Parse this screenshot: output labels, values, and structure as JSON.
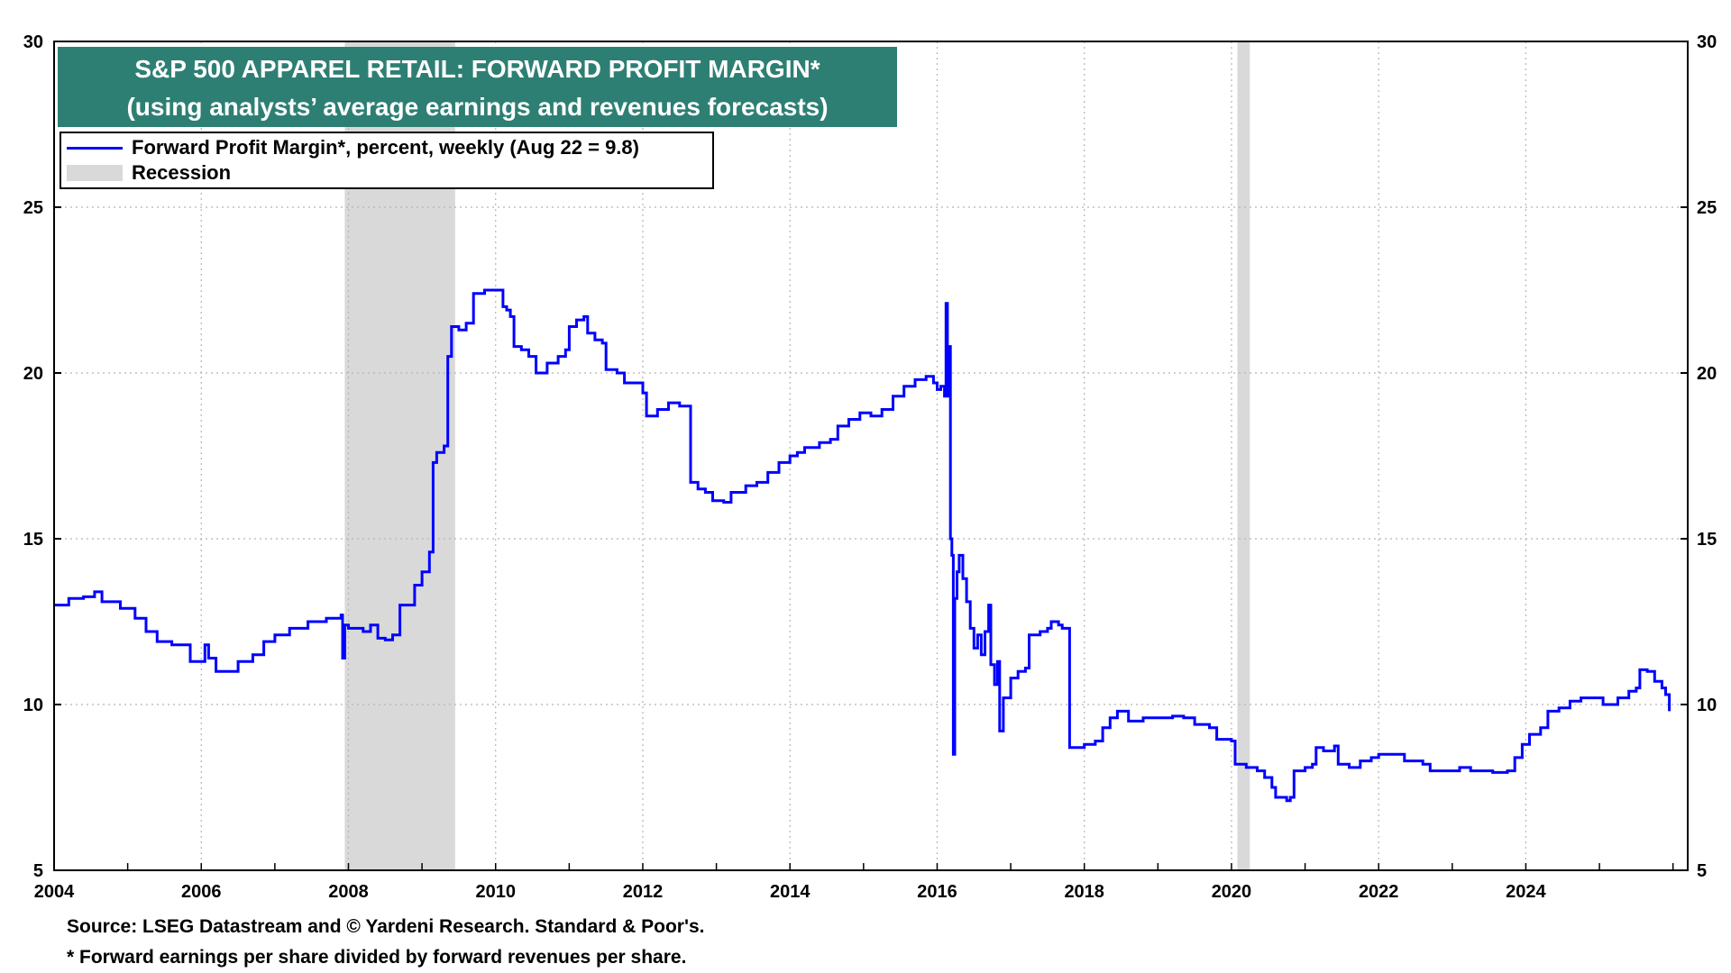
{
  "chart_data": {
    "type": "line",
    "title": "S&P 500 APPAREL RETAIL: FORWARD PROFIT MARGIN*",
    "subtitle": "(using analysts’ average earnings and revenues forecasts)",
    "xlim": [
      2004,
      2026.2
    ],
    "ylim": [
      5,
      30
    ],
    "x_ticks": [
      2004,
      2006,
      2008,
      2010,
      2012,
      2014,
      2016,
      2018,
      2020,
      2022,
      2024
    ],
    "y_ticks": [
      5,
      10,
      15,
      20,
      25,
      30
    ],
    "grid": true,
    "legend_position": "top-left",
    "colors": {
      "series": "#0000ff",
      "recession": "#d9d9d9",
      "title_bg": "#2e7f73"
    },
    "series": [
      {
        "name": "Forward Profit Margin*, percent, weekly (Aug 22 = 9.8)",
        "points": [
          [
            2004.0,
            13.0
          ],
          [
            2004.2,
            13.2
          ],
          [
            2004.4,
            13.25
          ],
          [
            2004.55,
            13.4
          ],
          [
            2004.65,
            13.1
          ],
          [
            2004.9,
            12.9
          ],
          [
            2005.1,
            12.6
          ],
          [
            2005.25,
            12.2
          ],
          [
            2005.4,
            11.9
          ],
          [
            2005.6,
            11.8
          ],
          [
            2005.75,
            11.8
          ],
          [
            2005.85,
            11.3
          ],
          [
            2006.05,
            11.8
          ],
          [
            2006.1,
            11.4
          ],
          [
            2006.2,
            11.0
          ],
          [
            2006.35,
            11.0
          ],
          [
            2006.5,
            11.3
          ],
          [
            2006.7,
            11.5
          ],
          [
            2006.85,
            11.9
          ],
          [
            2007.0,
            12.1
          ],
          [
            2007.2,
            12.3
          ],
          [
            2007.45,
            12.5
          ],
          [
            2007.7,
            12.6
          ],
          [
            2007.9,
            12.7
          ],
          [
            2007.92,
            11.4
          ],
          [
            2007.95,
            12.4
          ],
          [
            2008.0,
            12.3
          ],
          [
            2008.2,
            12.2
          ],
          [
            2008.3,
            12.4
          ],
          [
            2008.4,
            12.0
          ],
          [
            2008.5,
            11.95
          ],
          [
            2008.6,
            12.1
          ],
          [
            2008.7,
            13.0
          ],
          [
            2008.9,
            13.6
          ],
          [
            2009.0,
            14.0
          ],
          [
            2009.1,
            14.6
          ],
          [
            2009.15,
            17.3
          ],
          [
            2009.2,
            17.6
          ],
          [
            2009.3,
            17.8
          ],
          [
            2009.35,
            20.5
          ],
          [
            2009.4,
            21.4
          ],
          [
            2009.5,
            21.3
          ],
          [
            2009.6,
            21.5
          ],
          [
            2009.7,
            22.4
          ],
          [
            2009.85,
            22.5
          ],
          [
            2010.0,
            22.5
          ],
          [
            2010.1,
            22.0
          ],
          [
            2010.15,
            21.9
          ],
          [
            2010.2,
            21.7
          ],
          [
            2010.25,
            20.8
          ],
          [
            2010.35,
            20.7
          ],
          [
            2010.45,
            20.5
          ],
          [
            2010.55,
            20.0
          ],
          [
            2010.7,
            20.3
          ],
          [
            2010.85,
            20.5
          ],
          [
            2010.95,
            20.7
          ],
          [
            2011.0,
            21.4
          ],
          [
            2011.1,
            21.6
          ],
          [
            2011.2,
            21.7
          ],
          [
            2011.25,
            21.2
          ],
          [
            2011.35,
            21.0
          ],
          [
            2011.45,
            20.9
          ],
          [
            2011.5,
            20.1
          ],
          [
            2011.65,
            20.0
          ],
          [
            2011.75,
            19.7
          ],
          [
            2011.9,
            19.7
          ],
          [
            2012.0,
            19.4
          ],
          [
            2012.05,
            18.7
          ],
          [
            2012.2,
            18.9
          ],
          [
            2012.35,
            19.1
          ],
          [
            2012.5,
            19.0
          ],
          [
            2012.6,
            19.0
          ],
          [
            2012.65,
            16.7
          ],
          [
            2012.75,
            16.5
          ],
          [
            2012.85,
            16.4
          ],
          [
            2012.95,
            16.15
          ],
          [
            2013.1,
            16.1
          ],
          [
            2013.2,
            16.4
          ],
          [
            2013.4,
            16.6
          ],
          [
            2013.55,
            16.7
          ],
          [
            2013.7,
            17.0
          ],
          [
            2013.85,
            17.3
          ],
          [
            2014.0,
            17.5
          ],
          [
            2014.1,
            17.6
          ],
          [
            2014.2,
            17.75
          ],
          [
            2014.4,
            17.9
          ],
          [
            2014.55,
            18.0
          ],
          [
            2014.65,
            18.4
          ],
          [
            2014.8,
            18.6
          ],
          [
            2014.95,
            18.8
          ],
          [
            2015.1,
            18.7
          ],
          [
            2015.25,
            18.9
          ],
          [
            2015.4,
            19.3
          ],
          [
            2015.55,
            19.6
          ],
          [
            2015.7,
            19.8
          ],
          [
            2015.85,
            19.9
          ],
          [
            2015.95,
            19.7
          ],
          [
            2016.0,
            19.5
          ],
          [
            2016.05,
            19.6
          ],
          [
            2016.1,
            19.3
          ],
          [
            2016.12,
            22.1
          ],
          [
            2016.14,
            19.3
          ],
          [
            2016.16,
            20.8
          ],
          [
            2016.18,
            15.0
          ],
          [
            2016.2,
            14.5
          ],
          [
            2016.22,
            8.5
          ],
          [
            2016.24,
            13.2
          ],
          [
            2016.27,
            14.0
          ],
          [
            2016.3,
            14.5
          ],
          [
            2016.35,
            13.8
          ],
          [
            2016.4,
            13.1
          ],
          [
            2016.45,
            12.3
          ],
          [
            2016.5,
            11.7
          ],
          [
            2016.55,
            12.1
          ],
          [
            2016.6,
            11.5
          ],
          [
            2016.65,
            12.2
          ],
          [
            2016.7,
            13.0
          ],
          [
            2016.73,
            11.2
          ],
          [
            2016.78,
            10.6
          ],
          [
            2016.82,
            11.3
          ],
          [
            2016.85,
            9.2
          ],
          [
            2016.9,
            10.2
          ],
          [
            2017.0,
            10.8
          ],
          [
            2017.1,
            11.0
          ],
          [
            2017.2,
            11.1
          ],
          [
            2017.25,
            12.1
          ],
          [
            2017.4,
            12.2
          ],
          [
            2017.5,
            12.3
          ],
          [
            2017.55,
            12.5
          ],
          [
            2017.65,
            12.4
          ],
          [
            2017.7,
            12.3
          ],
          [
            2017.75,
            12.3
          ],
          [
            2017.8,
            8.7
          ],
          [
            2017.9,
            8.7
          ],
          [
            2018.0,
            8.8
          ],
          [
            2018.15,
            8.9
          ],
          [
            2018.25,
            9.3
          ],
          [
            2018.35,
            9.6
          ],
          [
            2018.45,
            9.8
          ],
          [
            2018.55,
            9.8
          ],
          [
            2018.6,
            9.5
          ],
          [
            2018.8,
            9.6
          ],
          [
            2019.0,
            9.6
          ],
          [
            2019.2,
            9.65
          ],
          [
            2019.35,
            9.6
          ],
          [
            2019.5,
            9.4
          ],
          [
            2019.7,
            9.3
          ],
          [
            2019.8,
            8.95
          ],
          [
            2020.0,
            8.9
          ],
          [
            2020.05,
            8.2
          ],
          [
            2020.2,
            8.1
          ],
          [
            2020.35,
            8.0
          ],
          [
            2020.45,
            7.8
          ],
          [
            2020.55,
            7.5
          ],
          [
            2020.6,
            7.2
          ],
          [
            2020.75,
            7.1
          ],
          [
            2020.8,
            7.2
          ],
          [
            2020.85,
            8.0
          ],
          [
            2021.0,
            8.1
          ],
          [
            2021.1,
            8.2
          ],
          [
            2021.15,
            8.7
          ],
          [
            2021.25,
            8.6
          ],
          [
            2021.4,
            8.75
          ],
          [
            2021.45,
            8.2
          ],
          [
            2021.6,
            8.1
          ],
          [
            2021.75,
            8.3
          ],
          [
            2021.9,
            8.4
          ],
          [
            2022.0,
            8.5
          ],
          [
            2022.2,
            8.5
          ],
          [
            2022.35,
            8.3
          ],
          [
            2022.5,
            8.3
          ],
          [
            2022.6,
            8.2
          ],
          [
            2022.7,
            8.0
          ],
          [
            2022.9,
            8.0
          ],
          [
            2023.1,
            8.1
          ],
          [
            2023.25,
            8.0
          ],
          [
            2023.4,
            8.0
          ],
          [
            2023.55,
            7.95
          ],
          [
            2023.75,
            8.0
          ],
          [
            2023.85,
            8.4
          ],
          [
            2023.95,
            8.8
          ],
          [
            2024.05,
            9.1
          ],
          [
            2024.2,
            9.3
          ],
          [
            2024.3,
            9.8
          ],
          [
            2024.45,
            9.9
          ],
          [
            2024.6,
            10.1
          ],
          [
            2024.75,
            10.2
          ],
          [
            2024.95,
            10.2
          ],
          [
            2025.05,
            10.0
          ],
          [
            2025.25,
            10.2
          ],
          [
            2025.4,
            10.4
          ],
          [
            2025.5,
            10.5
          ],
          [
            2025.55,
            11.05
          ],
          [
            2025.65,
            11.0
          ],
          [
            2025.75,
            10.7
          ],
          [
            2025.85,
            10.5
          ],
          [
            2025.9,
            10.3
          ],
          [
            2025.95,
            9.8
          ]
        ]
      }
    ],
    "recessions": [
      {
        "name": "Recession",
        "start": 2007.95,
        "end": 2009.45
      },
      {
        "name": "Recession",
        "start": 2020.08,
        "end": 2020.25
      }
    ]
  },
  "legend": {
    "series_label": "Forward Profit Margin*, percent, weekly (Aug 22 = 9.8)",
    "recession_label": "Recession"
  },
  "footnotes": {
    "source": "Source: LSEG Datastream and © Yardeni Research. Standard & Poor's.",
    "definition": "* Forward earnings per share divided by forward revenues per share."
  }
}
